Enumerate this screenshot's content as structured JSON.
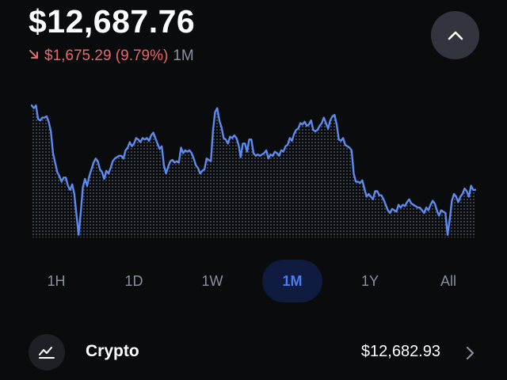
{
  "balance": "$12,687.76",
  "change": {
    "arrow_icon": "arrow-down-right-icon",
    "amount_pct": "$1,675.29 (9.79%)",
    "period": "1M",
    "color": "#e8686a"
  },
  "collapse_button": {
    "icon": "chevron-up-icon"
  },
  "chart_data": {
    "type": "line",
    "line_color": "#5b8af0",
    "fill_style": "dotted",
    "values": [
      97,
      95,
      97,
      87,
      86,
      88,
      88,
      89,
      85,
      78,
      62,
      55,
      48,
      45,
      41,
      44,
      44,
      38,
      35,
      39,
      32,
      17,
      2,
      18,
      37,
      43,
      38,
      45,
      50,
      55,
      58,
      56,
      50,
      48,
      43,
      49,
      47,
      51,
      56,
      58,
      59,
      60,
      60,
      58,
      64,
      66,
      70,
      67,
      69,
      73,
      72,
      70,
      73,
      72,
      73,
      71,
      75,
      77,
      73,
      69,
      65,
      67,
      53,
      47,
      52,
      56,
      57,
      55,
      56,
      55,
      66,
      62,
      64,
      63,
      64,
      62,
      58,
      53,
      51,
      47,
      49,
      50,
      58,
      57,
      56,
      78,
      92,
      95,
      86,
      81,
      73,
      72,
      69,
      74,
      73,
      75,
      73,
      68,
      59,
      69,
      69,
      63,
      72,
      72,
      62,
      60,
      61,
      60,
      61,
      62,
      64,
      58,
      61,
      60,
      63,
      62,
      60,
      64,
      63,
      67,
      68,
      73,
      71,
      76,
      79,
      80,
      84,
      83,
      85,
      82,
      83,
      86,
      79,
      78,
      79,
      82,
      84,
      88,
      84,
      80,
      86,
      89,
      90,
      83,
      72,
      71,
      73,
      68,
      67,
      66,
      64,
      47,
      41,
      41,
      40,
      42,
      36,
      30,
      32,
      30,
      28,
      34,
      34,
      31,
      31,
      28,
      24,
      20,
      18,
      21,
      20,
      19,
      24,
      22,
      24,
      23,
      26,
      28,
      25,
      24,
      23,
      22,
      22,
      20,
      18,
      22,
      20,
      24,
      27,
      25,
      20,
      16,
      20,
      19,
      18,
      2,
      13,
      27,
      32,
      30,
      26,
      30,
      32,
      36,
      34,
      30,
      38,
      35,
      35
    ]
  },
  "ranges": [
    {
      "label": "1H",
      "active": false
    },
    {
      "label": "1D",
      "active": false
    },
    {
      "label": "1W",
      "active": false
    },
    {
      "label": "1M",
      "active": true
    },
    {
      "label": "1Y",
      "active": false
    },
    {
      "label": "All",
      "active": false
    }
  ],
  "asset": {
    "icon": "line-chart-icon",
    "name": "Crypto",
    "value": "$12,682.93",
    "chevron_icon": "chevron-right-icon"
  }
}
